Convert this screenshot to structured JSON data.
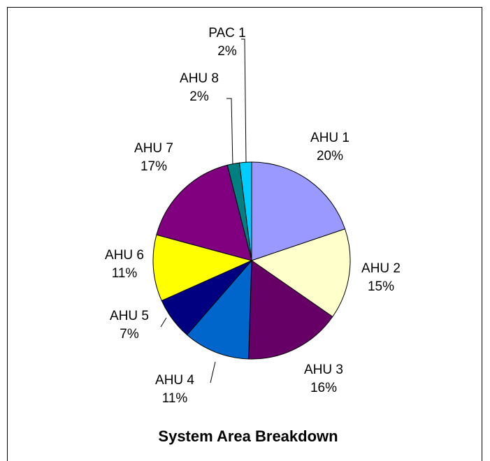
{
  "chart_data": {
    "type": "pie",
    "title": "System Area Breakdown",
    "categories": [
      "AHU 1",
      "AHU 2",
      "AHU 3",
      "AHU 4",
      "AHU 5",
      "AHU 6",
      "AHU 7",
      "AHU 8",
      "PAC 1"
    ],
    "values": [
      20,
      15,
      16,
      11,
      7,
      11,
      17,
      2,
      2
    ],
    "value_labels": [
      "20%",
      "15%",
      "16%",
      "11%",
      "7%",
      "11%",
      "17%",
      "2%",
      "2%"
    ],
    "colors": [
      "#9999ff",
      "#ffffcc",
      "#660066",
      "#0066cc",
      "#000080",
      "#ffff00",
      "#800080",
      "#008080",
      "#00ccff"
    ]
  }
}
